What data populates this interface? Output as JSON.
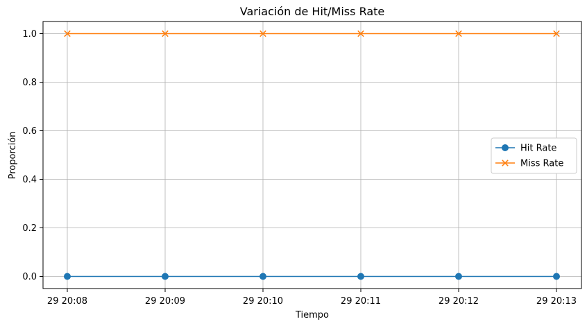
{
  "chart_data": {
    "type": "line",
    "title": "Variación de Hit/Miss Rate",
    "xlabel": "Tiempo",
    "ylabel": "Proporción",
    "categories": [
      "29 20:08",
      "29 20:09",
      "29 20:10",
      "29 20:11",
      "29 20:12",
      "29 20:13"
    ],
    "yticks": [
      "0.0",
      "0.2",
      "0.4",
      "0.6",
      "0.8",
      "1.0"
    ],
    "ylim": [
      -0.05,
      1.05
    ],
    "grid": true,
    "legend_position": "right",
    "series": [
      {
        "name": "Hit Rate",
        "values": [
          0,
          0,
          0,
          0,
          0,
          0
        ],
        "color": "#1f77b4",
        "marker": "circle"
      },
      {
        "name": "Miss Rate",
        "values": [
          1,
          1,
          1,
          1,
          1,
          1
        ],
        "color": "#ff7f0e",
        "marker": "x"
      }
    ]
  }
}
